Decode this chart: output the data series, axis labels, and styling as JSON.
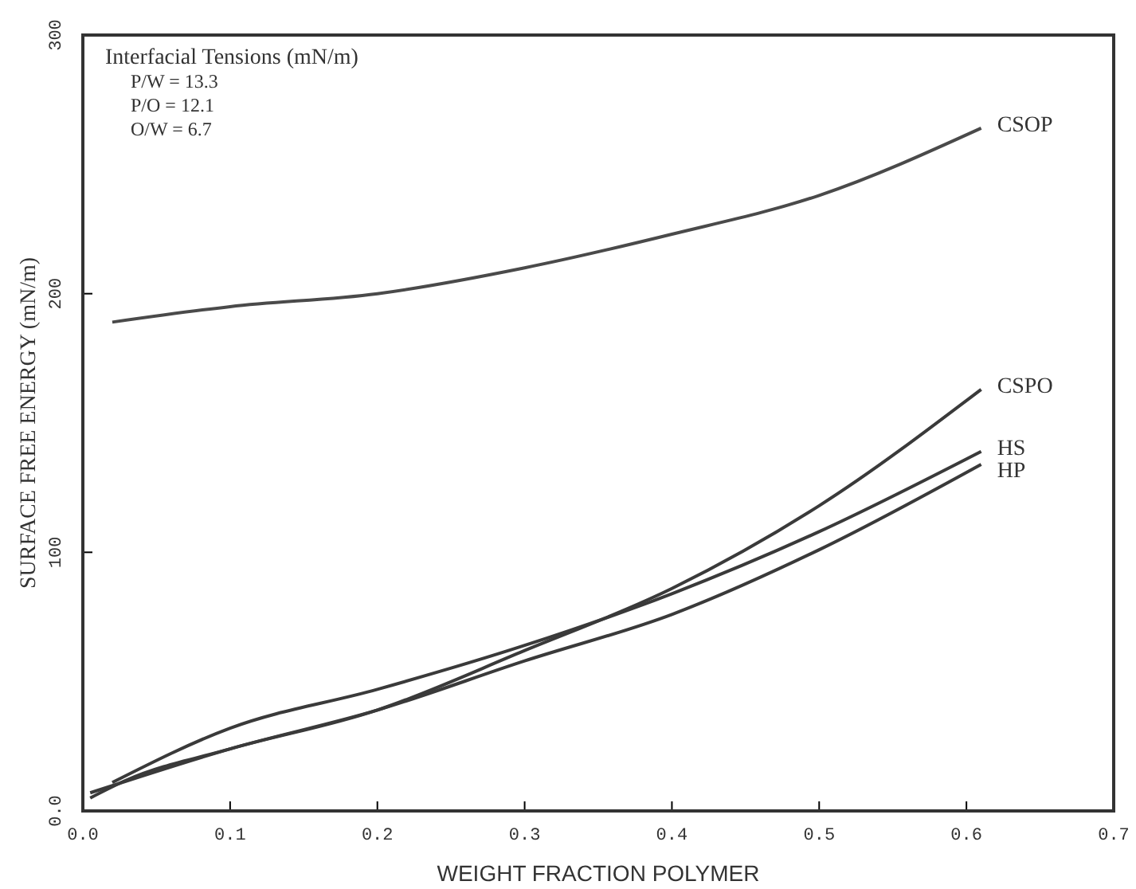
{
  "chart_data": {
    "type": "line",
    "xlabel": "WEIGHT FRACTION POLYMER",
    "ylabel": "SURFACE FREE ENERGY (mN/m)",
    "xlim": [
      0,
      0.7
    ],
    "xticks": [
      {
        "value": 0,
        "label": "0.0"
      },
      {
        "value": 0.1,
        "label": "0.1"
      },
      {
        "value": 0.2,
        "label": "0.2"
      },
      {
        "value": 0.3,
        "label": "0.3"
      },
      {
        "value": 0.4,
        "label": "0.4"
      },
      {
        "value": 0.5,
        "label": "0.5"
      },
      {
        "value": 0.6,
        "label": "0.6"
      },
      {
        "value": 0.7,
        "label": "0.7"
      }
    ],
    "ylim": [
      0,
      300
    ],
    "yticks": [
      {
        "value": 0,
        "label": "0.0"
      },
      100,
      200,
      300
    ],
    "annotations": [
      "Interfacial Tensions (mN/m)",
      "P/W = 13.3",
      "P/O = 12.1",
      "O/W = 6.7"
    ],
    "series": [
      {
        "name": "CSOP",
        "color": "#4a4a4a",
        "x": [
          0.02,
          0.1,
          0.2,
          0.3,
          0.4,
          0.5,
          0.61
        ],
        "values": [
          189,
          195,
          200,
          210,
          223,
          238,
          264
        ]
      },
      {
        "name": "CSPO",
        "color": "#3a3a3a",
        "x": [
          0.005,
          0.03,
          0.1,
          0.2,
          0.3,
          0.4,
          0.5,
          0.61
        ],
        "values": [
          5,
          12,
          24,
          39,
          62,
          86,
          118,
          163
        ]
      },
      {
        "name": "HS",
        "color": "#3a3a3a",
        "x": [
          0.02,
          0.1,
          0.2,
          0.3,
          0.4,
          0.5,
          0.61
        ],
        "values": [
          11,
          32,
          47,
          64,
          84,
          108,
          139
        ]
      },
      {
        "name": "HP",
        "color": "#3a3a3a",
        "x": [
          0.005,
          0.1,
          0.2,
          0.3,
          0.4,
          0.5,
          0.61
        ],
        "values": [
          7,
          24,
          39,
          58,
          76,
          101,
          134
        ]
      }
    ]
  }
}
